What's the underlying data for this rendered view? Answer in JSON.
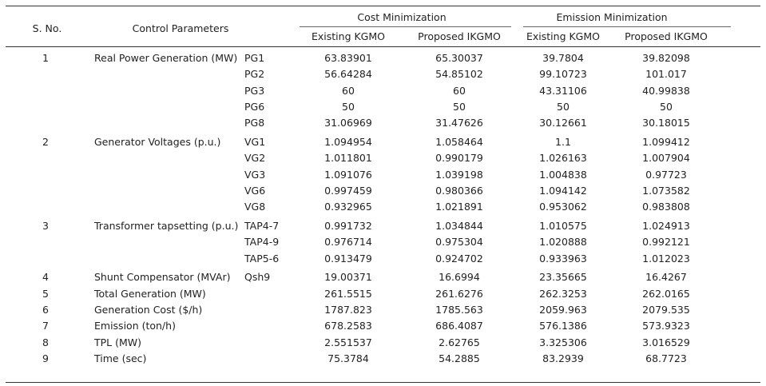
{
  "header": {
    "sno": "S. No.",
    "control": "Control Parameters",
    "cost_group": "Cost Minimization",
    "emission_group": "Emission Minimization",
    "col_existing_cost": "Existing KGMO",
    "col_proposed_cost": "Proposed IKGMO",
    "col_existing_em": "Existing KGMO",
    "col_proposed_em": "Proposed IKGMO"
  },
  "groups": [
    {
      "sno": "1",
      "label": "Real Power Generation (MW)",
      "rows": [
        {
          "param": "PG1",
          "v": [
            "63.83901",
            "65.30037",
            "39.7804",
            "39.82098"
          ]
        },
        {
          "param": "PG2",
          "v": [
            "56.64284",
            "54.85102",
            "99.10723",
            "101.017"
          ]
        },
        {
          "param": "PG3",
          "v": [
            "60",
            "60",
            "43.31106",
            "40.99838"
          ]
        },
        {
          "param": "PG6",
          "v": [
            "50",
            "50",
            "50",
            "50"
          ]
        },
        {
          "param": "PG8",
          "v": [
            "31.06969",
            "31.47626",
            "30.12661",
            "30.18015"
          ]
        }
      ]
    },
    {
      "sno": "2",
      "label": "Generator Voltages (p.u.)",
      "rows": [
        {
          "param": "VG1",
          "v": [
            "1.094954",
            "1.058464",
            "1.1",
            "1.099412"
          ]
        },
        {
          "param": "VG2",
          "v": [
            "1.011801",
            "0.990179",
            "1.026163",
            "1.007904"
          ]
        },
        {
          "param": "VG3",
          "v": [
            "1.091076",
            "1.039198",
            "1.004838",
            "0.97723"
          ]
        },
        {
          "param": "VG6",
          "v": [
            "0.997459",
            "0.980366",
            "1.094142",
            "1.073582"
          ]
        },
        {
          "param": "VG8",
          "v": [
            "0.932965",
            "1.021891",
            "0.953062",
            "0.983808"
          ]
        }
      ]
    },
    {
      "sno": "3",
      "label": "Transformer tapsetting (p.u.)",
      "rows": [
        {
          "param": "TAP4-7",
          "v": [
            "0.991732",
            "1.034844",
            "1.010575",
            "1.024913"
          ]
        },
        {
          "param": "TAP4-9",
          "v": [
            "0.976714",
            "0.975304",
            "1.020888",
            "0.992121"
          ]
        },
        {
          "param": "TAP5-6",
          "v": [
            "0.913479",
            "0.924702",
            "0.933963",
            "1.012023"
          ]
        }
      ]
    },
    {
      "sno": "4",
      "label": "Shunt Compensator (MVAr)",
      "rows": [
        {
          "param": "Qsh9",
          "v": [
            "19.00371",
            "16.6994",
            "23.35665",
            "16.4267"
          ]
        }
      ]
    },
    {
      "sno": "5",
      "label": "Total Generation (MW)",
      "rows": [
        {
          "param": "",
          "v": [
            "261.5515",
            "261.6276",
            "262.3253",
            "262.0165"
          ]
        }
      ]
    },
    {
      "sno": "6",
      "label": "Generation Cost ($/h)",
      "rows": [
        {
          "param": "",
          "v": [
            "1787.823",
            "1785.563",
            "2059.963",
            "2079.535"
          ]
        }
      ]
    },
    {
      "sno": "7",
      "label": "Emission (ton/h)",
      "rows": [
        {
          "param": "",
          "v": [
            "678.2583",
            "686.4087",
            "576.1386",
            "573.9323"
          ]
        }
      ]
    },
    {
      "sno": "8",
      "label": "TPL (MW)",
      "rows": [
        {
          "param": "",
          "v": [
            "2.551537",
            "2.62765",
            "3.325306",
            "3.016529"
          ]
        }
      ]
    },
    {
      "sno": "9",
      "label": "Time (sec)",
      "rows": [
        {
          "param": "",
          "v": [
            "75.3784",
            "54.2885",
            "83.2939",
            "68.7723"
          ]
        }
      ]
    }
  ]
}
